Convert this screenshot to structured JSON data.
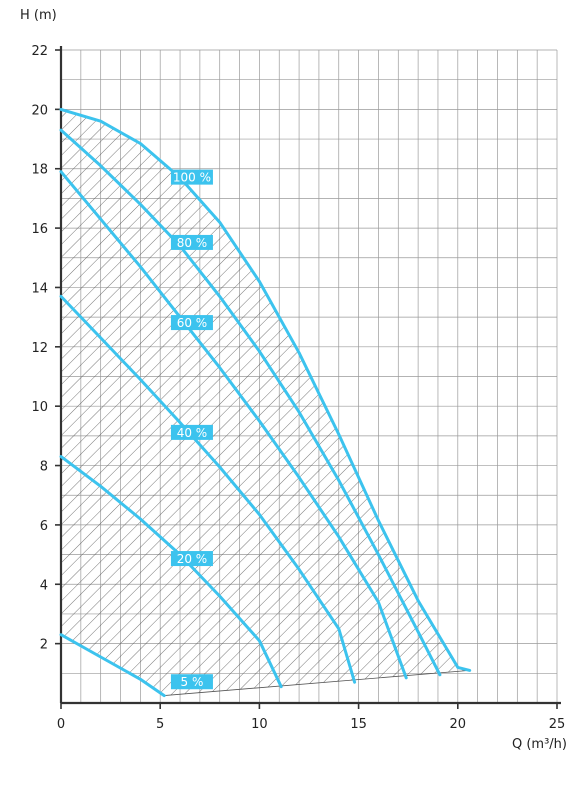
{
  "chart_data": {
    "type": "line",
    "title": "",
    "xlabel": "Q (m³/h)",
    "ylabel": "H (m)",
    "xlim": [
      0,
      25
    ],
    "ylim": [
      0,
      22
    ],
    "xticks": [
      0,
      5,
      10,
      15,
      20,
      25
    ],
    "yticks": [
      2,
      4,
      6,
      8,
      10,
      12,
      14,
      16,
      18,
      20,
      22
    ],
    "grid": true,
    "grid_minor_x": 1,
    "grid_minor_y": 1,
    "hatched_operating_area": true,
    "colors": {
      "curve": "#3cc3ee",
      "label_bg": "#3cc3ee",
      "label_text": "#ffffff",
      "grid": "#9a9a9a",
      "axis": "#333333",
      "hatch": "#555555"
    },
    "series": [
      {
        "name": "100 %",
        "label_at": [
          6.6,
          17.7
        ],
        "x": [
          0,
          2,
          4,
          6,
          8,
          10,
          12,
          14,
          16,
          18,
          20,
          20.6
        ],
        "y": [
          20.0,
          19.6,
          18.85,
          17.7,
          16.2,
          14.2,
          11.8,
          9.05,
          6.15,
          3.45,
          1.2,
          1.1
        ]
      },
      {
        "name": "80 %",
        "label_at": [
          6.6,
          15.5
        ],
        "x": [
          0,
          2,
          4,
          6,
          8,
          10,
          12,
          14,
          16,
          18,
          19.1
        ],
        "y": [
          19.3,
          18.1,
          16.8,
          15.4,
          13.7,
          11.85,
          9.8,
          7.5,
          5.0,
          2.4,
          0.95
        ]
      },
      {
        "name": "60 %",
        "label_at": [
          6.6,
          12.8
        ],
        "x": [
          0,
          2,
          4,
          6,
          8,
          10,
          12,
          14,
          16,
          17.4
        ],
        "y": [
          17.9,
          16.3,
          14.7,
          13.0,
          11.3,
          9.5,
          7.6,
          5.6,
          3.4,
          0.85
        ]
      },
      {
        "name": "40 %",
        "label_at": [
          6.6,
          9.1
        ],
        "x": [
          0,
          2,
          4,
          6,
          8,
          10,
          12,
          14,
          14.8
        ],
        "y": [
          13.7,
          12.3,
          10.9,
          9.45,
          7.95,
          6.35,
          4.5,
          2.5,
          0.7
        ]
      },
      {
        "name": "20 %",
        "label_at": [
          6.6,
          4.85
        ],
        "x": [
          0,
          2,
          4,
          6,
          8,
          10,
          11.1
        ],
        "y": [
          8.3,
          7.3,
          6.2,
          5.0,
          3.6,
          2.1,
          0.55
        ]
      },
      {
        "name": "5 %",
        "label_at": [
          6.6,
          0.7
        ],
        "x": [
          0,
          2,
          4,
          5.2
        ],
        "y": [
          2.3,
          1.55,
          0.8,
          0.25
        ]
      }
    ],
    "operating_area_bottom": {
      "x": [
        5.2,
        20.6
      ],
      "y": [
        0.25,
        1.1
      ]
    }
  }
}
